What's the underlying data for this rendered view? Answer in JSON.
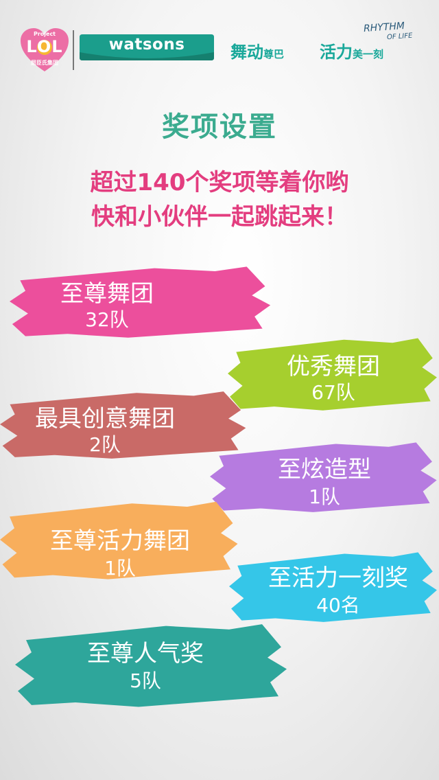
{
  "header": {
    "lol_project": "Project",
    "lol_main": "LOL",
    "lol_sub": "屈臣氏集团",
    "brand": "watsons",
    "slogan_part1": "舞动",
    "slogan_part1_small": "尊巴",
    "slogan_part2": "活力",
    "slogan_part2_small": "美一刻",
    "rhythm": "RHYTHM",
    "oflife": "OF LIFE"
  },
  "title": "奖项设置",
  "subtitle_line1": "超过140个奖项等着你哟",
  "subtitle_line2": "快和小伙伴一起跳起来！",
  "awards": [
    {
      "name": "至尊舞团",
      "count": "32队",
      "color": "#ec4f9c"
    },
    {
      "name": "优秀舞团",
      "count": "67队",
      "color": "#a6cf2e"
    },
    {
      "name": "最具创意舞团",
      "count": "2队",
      "color": "#c96a67"
    },
    {
      "name": "至炫造型",
      "count": "1队",
      "color": "#b67be0"
    },
    {
      "name": "至尊活力舞团",
      "count": "1队",
      "color": "#f8ae5c"
    },
    {
      "name": "至活力一刻奖",
      "count": "40名",
      "color": "#35c6e8"
    },
    {
      "name": "至尊人气奖",
      "count": "5队",
      "color": "#2ea69b"
    }
  ],
  "colors": {
    "title": "#3bab8f",
    "subtitle": "#e33d7f",
    "brand_teal": "#1b9e8c",
    "lol_pink": "#ec6ea5"
  }
}
